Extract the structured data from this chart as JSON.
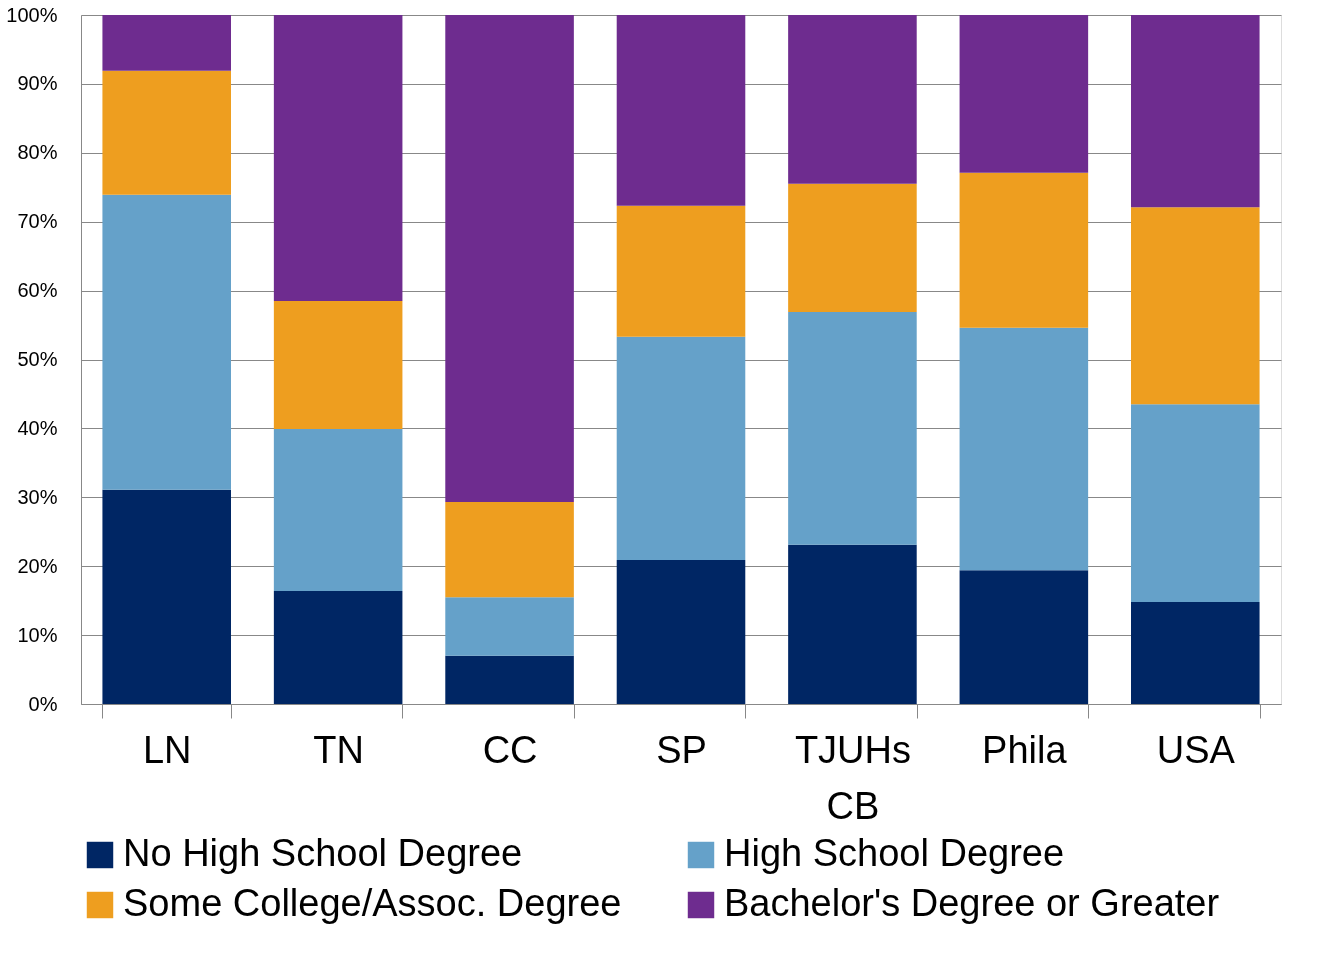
{
  "chart_data": {
    "type": "bar",
    "stacked": true,
    "categories": [
      "LN",
      "TN",
      "CC",
      "SP",
      "TJUHs CB",
      "Phila",
      "USA"
    ],
    "series": [
      {
        "name": "No High School Degree",
        "color": "#002664",
        "values": [
          31.1,
          16.4,
          7.0,
          20.9,
          23.1,
          19.4,
          14.8
        ]
      },
      {
        "name": "High School Degree",
        "color": "#65a1c9",
        "values": [
          42.8,
          23.5,
          8.5,
          32.4,
          33.8,
          35.2,
          28.7
        ]
      },
      {
        "name": "Some College/Assoc. Degree",
        "color": "#ee9e1f",
        "values": [
          18.0,
          18.6,
          13.8,
          19.0,
          18.6,
          22.5,
          28.6
        ]
      },
      {
        "name": "Bachelor's Degree or Greater",
        "color": "#6e2c8f",
        "values": [
          8.1,
          41.5,
          70.7,
          27.7,
          24.5,
          22.9,
          27.9
        ]
      }
    ],
    "ylim": [
      0,
      100
    ],
    "yticks": [
      {
        "value": 0,
        "label": "0%"
      },
      {
        "value": 10,
        "label": "10%"
      },
      {
        "value": 20,
        "label": "20%"
      },
      {
        "value": 30,
        "label": "30%"
      },
      {
        "value": 40,
        "label": "40%"
      },
      {
        "value": 50,
        "label": "50%"
      },
      {
        "value": 60,
        "label": "60%"
      },
      {
        "value": 70,
        "label": "70%"
      },
      {
        "value": 80,
        "label": "80%"
      },
      {
        "value": 90,
        "label": "90%"
      },
      {
        "value": 100,
        "label": "100%"
      }
    ],
    "grid": "y",
    "legend": "bottom"
  }
}
